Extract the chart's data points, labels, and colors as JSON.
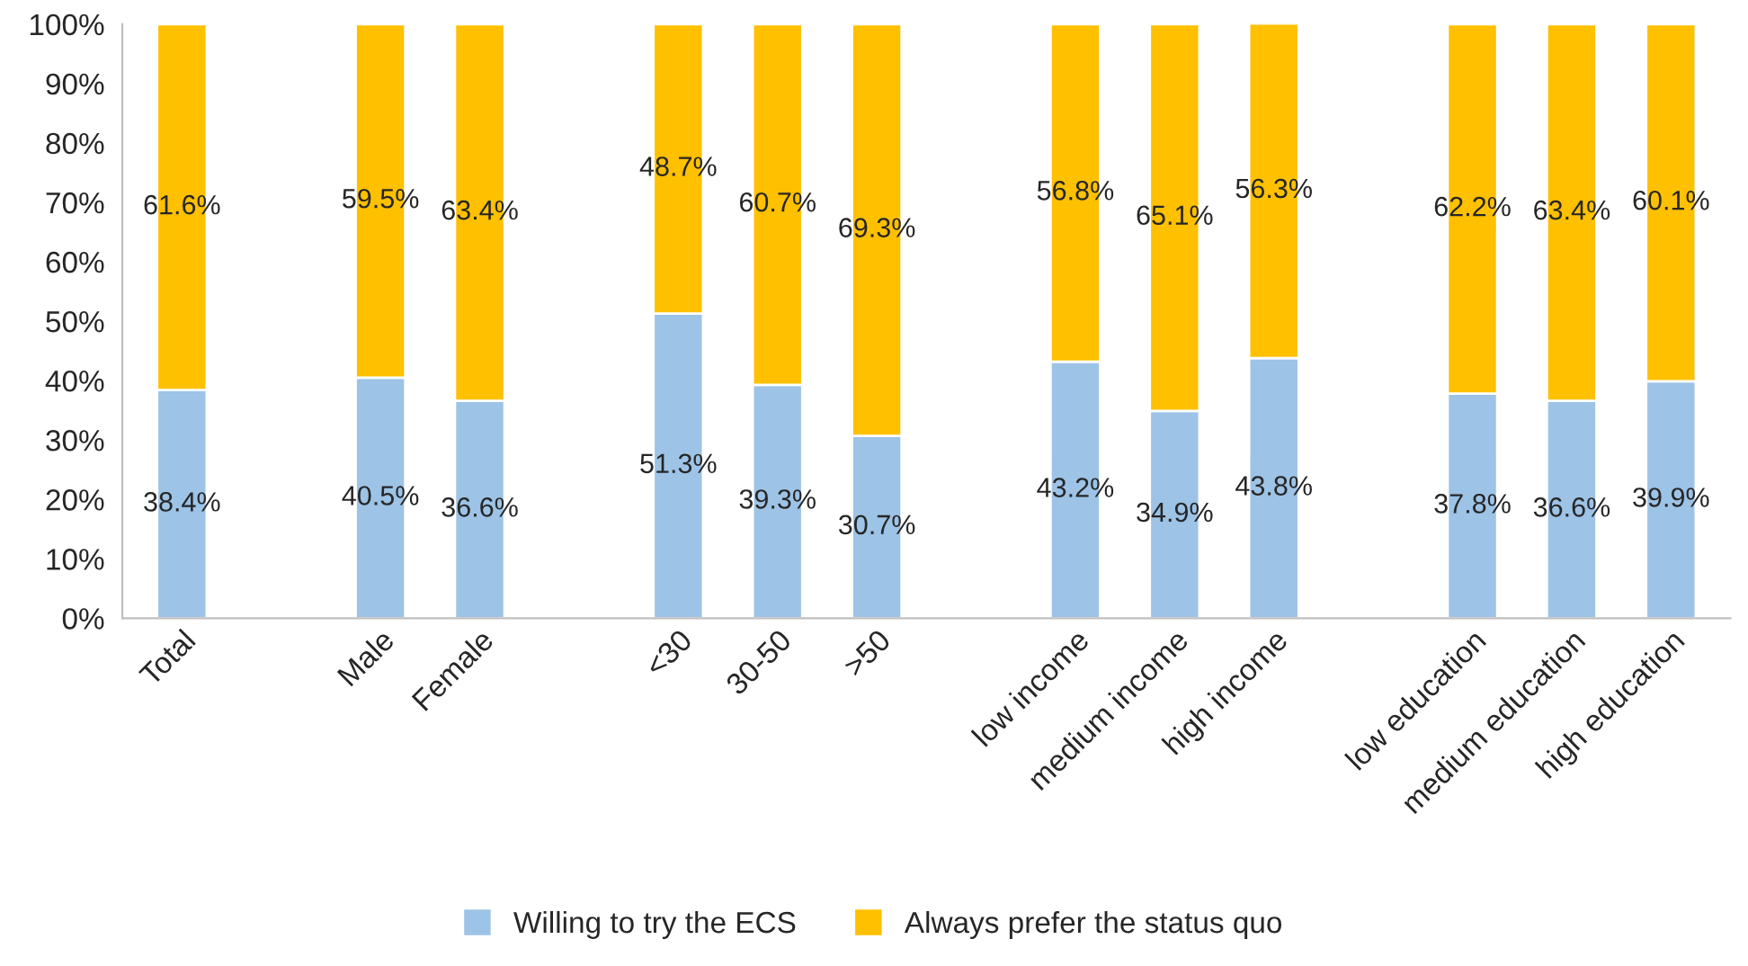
{
  "chart_data": {
    "type": "bar",
    "stacked": true,
    "categories": [
      "Total",
      null,
      "Male",
      "Female",
      null,
      "<30",
      "30-50",
      ">50",
      null,
      "low income",
      "medium income",
      "high income",
      null,
      "low education",
      "medium education",
      "high education"
    ],
    "series": [
      {
        "name": "Willing to try the ECS",
        "color": "#9dc3e6",
        "values": [
          38.4,
          null,
          40.5,
          36.6,
          null,
          51.3,
          39.3,
          30.7,
          null,
          43.2,
          34.9,
          43.8,
          null,
          37.8,
          36.6,
          39.9
        ],
        "value_labels": [
          "38.4%",
          null,
          "40.5%",
          "36.6%",
          null,
          "51.3%",
          "39.3%",
          "30.7%",
          null,
          "43.2%",
          "34.9%",
          "43.8%",
          null,
          "37.8%",
          "36.6%",
          "39.9%"
        ]
      },
      {
        "name": "Always prefer the status quo",
        "color": "#ffc000",
        "values": [
          61.6,
          null,
          59.5,
          63.4,
          null,
          48.7,
          60.7,
          69.3,
          null,
          56.8,
          65.1,
          56.3,
          null,
          62.2,
          63.4,
          60.1
        ],
        "value_labels": [
          "61.6%",
          null,
          "59.5%",
          "63.4%",
          null,
          "48.7%",
          "60.7%",
          "69.3%",
          null,
          "56.8%",
          "65.1%",
          "56.3%",
          null,
          "62.2%",
          "63.4%",
          "60.1%"
        ]
      }
    ],
    "ylim": [
      0,
      100
    ],
    "yticks": [
      {
        "value": 0,
        "label": "0%"
      },
      {
        "value": 10,
        "label": "10%"
      },
      {
        "value": 20,
        "label": "20%"
      },
      {
        "value": 30,
        "label": "30%"
      },
      {
        "value": 40,
        "label": "40%"
      },
      {
        "value": 50,
        "label": "50%"
      },
      {
        "value": 60,
        "label": "60%"
      },
      {
        "value": 70,
        "label": "70%"
      },
      {
        "value": 80,
        "label": "80%"
      },
      {
        "value": 90,
        "label": "90%"
      },
      {
        "value": 100,
        "label": "100%"
      }
    ],
    "legend": "bottom"
  }
}
